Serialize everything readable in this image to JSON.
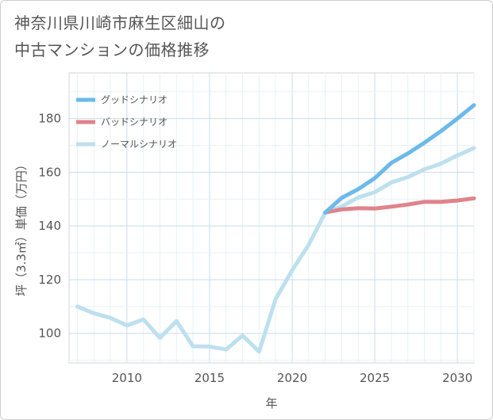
{
  "header": {
    "title_line1": "神奈川県川崎市麻生区細山の",
    "title_line2": "中古マンションの価格推移"
  },
  "chart_data": {
    "type": "line",
    "title": "神奈川県川崎市麻生区細山の中古マンションの価格推移",
    "xlabel": "年",
    "ylabel": "坪（3.3㎡）単価（万円）",
    "xlim": [
      2006.5,
      2031
    ],
    "ylim": [
      89,
      197
    ],
    "x_ticks": [
      2010,
      2015,
      2020,
      2025,
      2030
    ],
    "y_ticks": [
      100,
      120,
      140,
      160,
      180
    ],
    "grid": true,
    "legend_position": "top-left",
    "series": [
      {
        "name": "グッドシナリオ",
        "color": "#6cb9ea",
        "x": [
          2022,
          2023,
          2024,
          2025,
          2026,
          2027,
          2028,
          2029,
          2030,
          2031
        ],
        "y": [
          145,
          150.5,
          153.7,
          157.8,
          163.5,
          167.0,
          171.0,
          175.3,
          180.0,
          185.0
        ]
      },
      {
        "name": "バッドシナリオ",
        "color": "#e0838c",
        "x": [
          2022,
          2023,
          2024,
          2025,
          2026,
          2027,
          2028,
          2029,
          2030,
          2031
        ],
        "y": [
          145,
          146.2,
          146.6,
          146.5,
          147.2,
          148.0,
          149.0,
          149.0,
          149.5,
          150.3
        ]
      },
      {
        "name": "ノーマルシナリオ",
        "color": "#bde0ee",
        "x": [
          2007,
          2008,
          2009,
          2010,
          2011,
          2012,
          2013,
          2014,
          2015,
          2016,
          2017,
          2018,
          2019,
          2020,
          2021,
          2022,
          2023,
          2024,
          2025,
          2026,
          2027,
          2028,
          2029,
          2030,
          2031
        ],
        "y": [
          110,
          107.5,
          105.8,
          103,
          105.2,
          98.3,
          104.6,
          95.2,
          95.1,
          94,
          99.2,
          93.2,
          112.8,
          123.5,
          133,
          145,
          147.3,
          150.6,
          152.6,
          156.2,
          158.2,
          161.1,
          163.2,
          166.3,
          169.0
        ]
      }
    ]
  }
}
